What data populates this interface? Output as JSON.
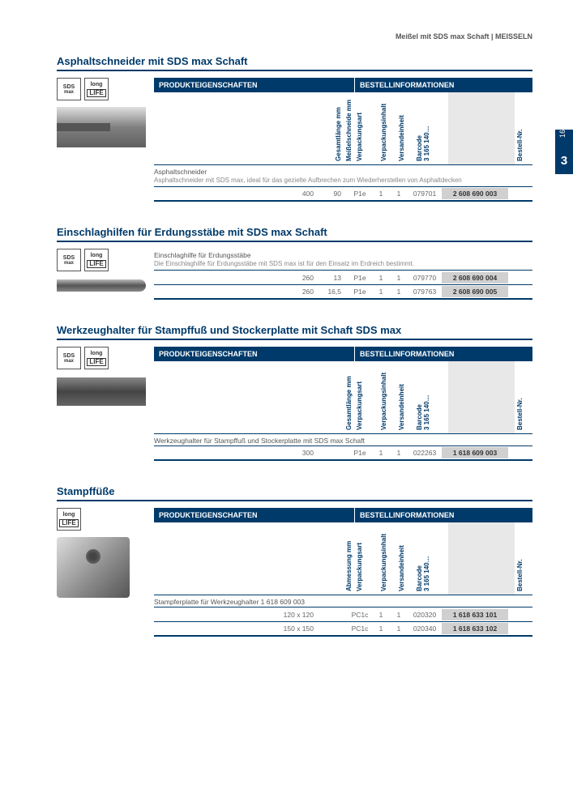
{
  "header": {
    "breadcrumb": "Meißel mit SDS max Schaft | MEISSELN"
  },
  "side_tab": {
    "chapter": "3",
    "page": "167"
  },
  "table_headers": {
    "left": "PRODUKTEIGENSCHAFTEN",
    "right": "BESTELLINFORMATIONEN",
    "cols": {
      "gesamtlaenge": "Gesamtlänge mm",
      "meisselschneide": "Meißelschneide mm",
      "abmessung": "Abmessung mm",
      "verpackungsart": "Verpackungsart",
      "verpackungsinhalt": "Verpackungsinhalt",
      "versandeinheit": "Versandeinheit",
      "barcode": "Barcode\n3 165 140…",
      "bestell": "Bestell-Nr."
    }
  },
  "badges": {
    "sds": "SDS",
    "sds_sub": "max",
    "long": "long",
    "life": "LIFE"
  },
  "sections": [
    {
      "title": "Asphaltschneider mit SDS max Schaft",
      "show_header": true,
      "left_cols": [
        "gesamtlaenge",
        "meisselschneide"
      ],
      "image": "chisel",
      "badges": [
        "sds",
        "long"
      ],
      "subtitle": "Asphaltschneider",
      "desc": "Asphaltschneider mit SDS max, ideal für das gezielte Aufbrechen zum Wiederherstellen von Asphaltdecken",
      "rows": [
        {
          "v1": "400",
          "v2": "90",
          "pack": "P1e",
          "q1": "1",
          "q2": "1",
          "bar": "079701",
          "order": "2 608 690 003"
        }
      ]
    },
    {
      "title": "Einschlaghilfen für Erdungsstäbe mit SDS max Schaft",
      "show_header": false,
      "left_cols": [
        "gesamtlaenge",
        "meisselschneide"
      ],
      "image": "rod",
      "badges": [
        "sds",
        "long"
      ],
      "subtitle": "Einschlaghilfe für Erdungsstäbe",
      "desc": "Die Einschlaghilfe für Erdungsstäbe mit SDS max ist für den Einsatz im Erdreich bestimmt.",
      "rows": [
        {
          "v1": "260",
          "v2": "13",
          "pack": "P1e",
          "q1": "1",
          "q2": "1",
          "bar": "079770",
          "order": "2 608 690 004"
        },
        {
          "v1": "260",
          "v2": "16,5",
          "pack": "P1e",
          "q1": "1",
          "q2": "1",
          "bar": "079763",
          "order": "2 608 690 005"
        }
      ]
    },
    {
      "title": "Werkzeughalter für Stampffuß und Stockerplatte mit Schaft SDS max",
      "show_header": true,
      "left_cols": [
        "gesamtlaenge"
      ],
      "image": "holder",
      "badges": [
        "sds",
        "long"
      ],
      "subtitle": "Werkzeughalter für Stampffuß und Stockerplatte mit SDS max Schaft",
      "desc": "",
      "rows": [
        {
          "v1": "300",
          "v2": "",
          "pack": "P1e",
          "q1": "1",
          "q2": "1",
          "bar": "022263",
          "order": "1 618 609 003"
        }
      ]
    },
    {
      "title": "Stampffüße",
      "show_header": true,
      "left_cols": [
        "abmessung"
      ],
      "image": "plate",
      "badges": [
        "long"
      ],
      "subtitle": "Stampferplatte für Werkzeughalter 1 618 609 003",
      "desc": "",
      "rows": [
        {
          "v1": "120 x 120",
          "v2": "",
          "pack": "PC1c",
          "q1": "1",
          "q2": "1",
          "bar": "020320",
          "order": "1 618 633 101"
        },
        {
          "v1": "150 x 150",
          "v2": "",
          "pack": "PC1c",
          "q1": "1",
          "q2": "1",
          "bar": "020340",
          "order": "1 618 633 102"
        }
      ]
    }
  ]
}
